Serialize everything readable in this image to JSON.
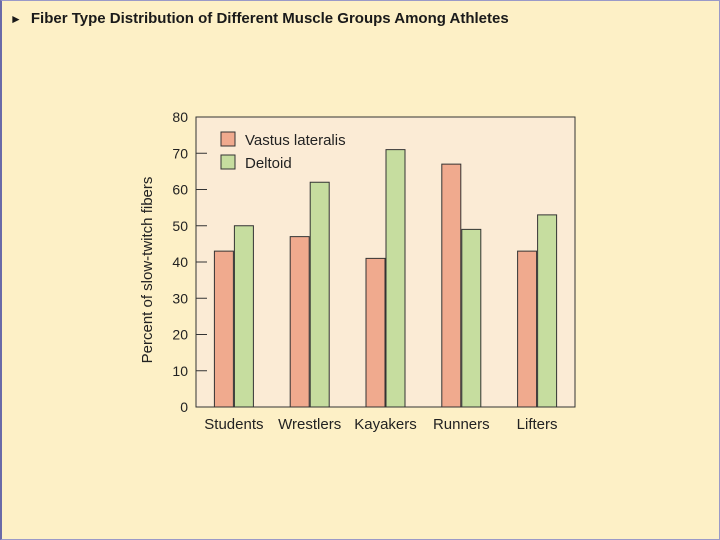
{
  "slide": {
    "title": "Fiber Type Distribution of Different Muscle Groups Among Athletes",
    "bullet_icon": "triangle-right-icon"
  },
  "colors": {
    "background": "#fdf0c6",
    "plot_background": "#fbebd5",
    "vastus": "#f0aa8e",
    "deltoid": "#c6dd9f",
    "stroke": "#333333"
  },
  "chart_data": {
    "type": "bar",
    "title": "",
    "xlabel": "",
    "ylabel": "Percent of slow-twitch fibers",
    "ylim": [
      0,
      80
    ],
    "yticks": [
      0,
      10,
      20,
      30,
      40,
      50,
      60,
      70,
      80
    ],
    "grid": false,
    "legend_position": "top-left",
    "categories": [
      "Students",
      "Wrestlers",
      "Kayakers",
      "Runners",
      "Lifters"
    ],
    "series": [
      {
        "name": "Vastus lateralis",
        "values": [
          43,
          47,
          41,
          67,
          43
        ]
      },
      {
        "name": "Deltoid",
        "values": [
          50,
          62,
          71,
          49,
          53
        ]
      }
    ]
  }
}
